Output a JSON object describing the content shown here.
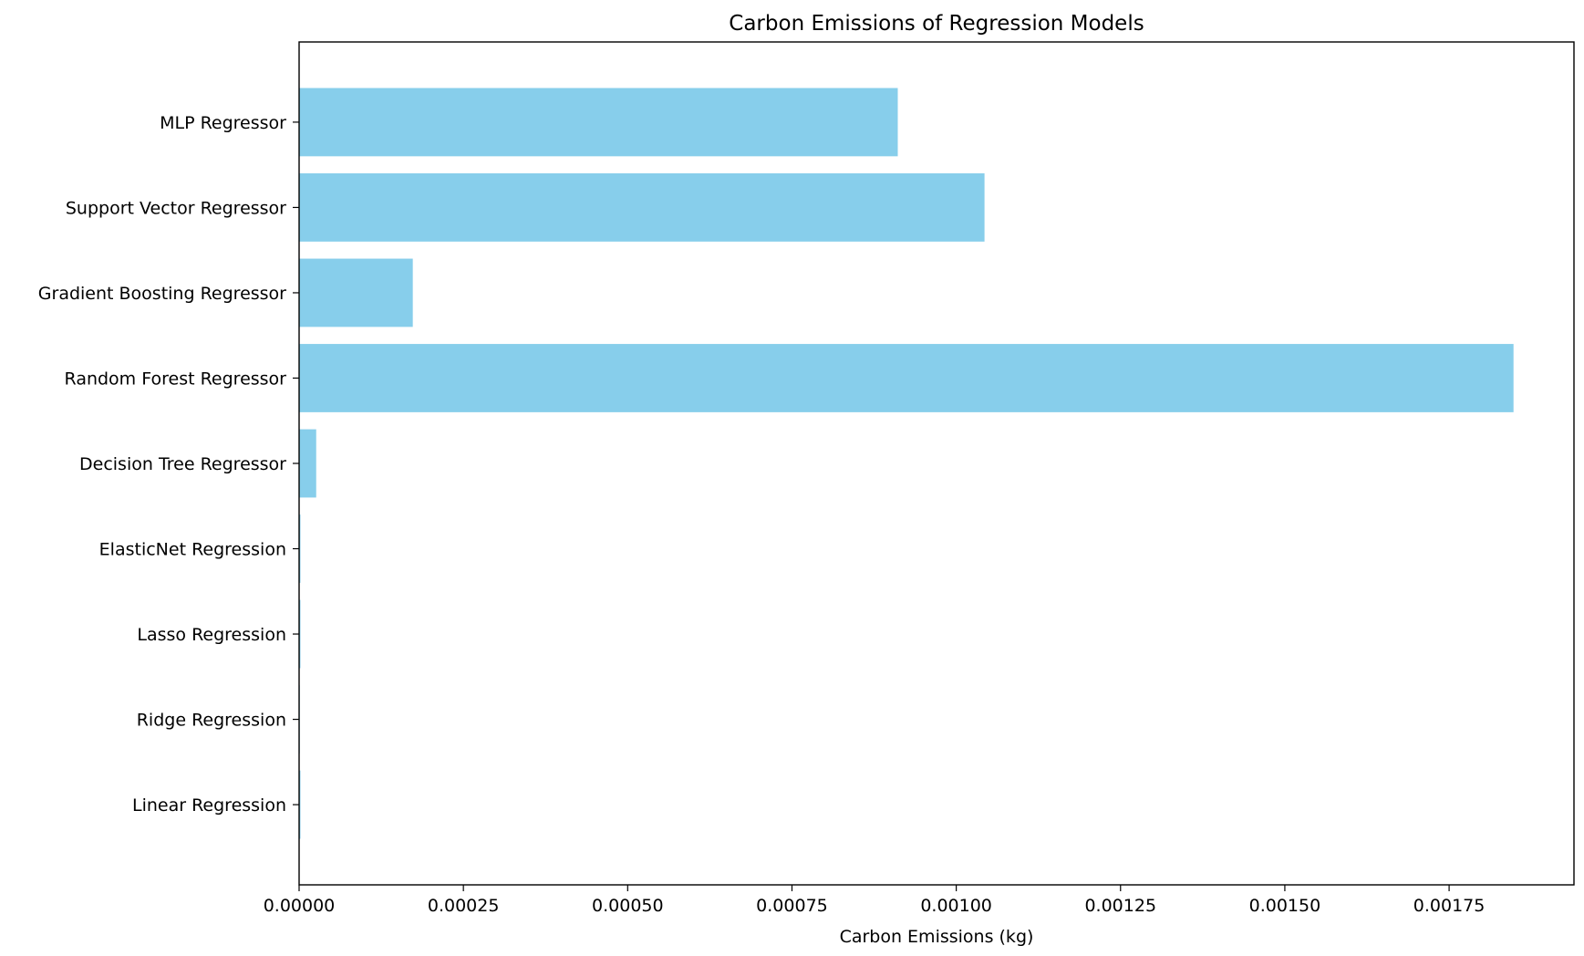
{
  "chart_data": {
    "type": "bar",
    "orientation": "horizontal",
    "title": "Carbon Emissions of Regression Models",
    "xlabel": "Carbon Emissions (kg)",
    "ylabel": "",
    "categories": [
      "Linear Regression",
      "Ridge Regression",
      "Lasso Regression",
      "ElasticNet Regression",
      "Decision Tree Regressor",
      "Random Forest Regressor",
      "Gradient Boosting Regressor",
      "Support Vector Regressor",
      "MLP Regressor"
    ],
    "values": [
      2e-06,
      1e-06,
      2e-06,
      2e-06,
      2.6e-05,
      0.001848,
      0.000173,
      0.001043,
      0.000911
    ],
    "xlim": [
      0,
      0.00194
    ],
    "xticks": [
      0,
      0.00025,
      0.0005,
      0.00075,
      0.001,
      0.00125,
      0.0015,
      0.00175
    ],
    "xtick_labels": [
      "0.00000",
      "0.00025",
      "0.00050",
      "0.00075",
      "0.00100",
      "0.00125",
      "0.00150",
      "0.00175"
    ],
    "bar_color": "#87CEEB",
    "grid": false,
    "legend": "none"
  }
}
